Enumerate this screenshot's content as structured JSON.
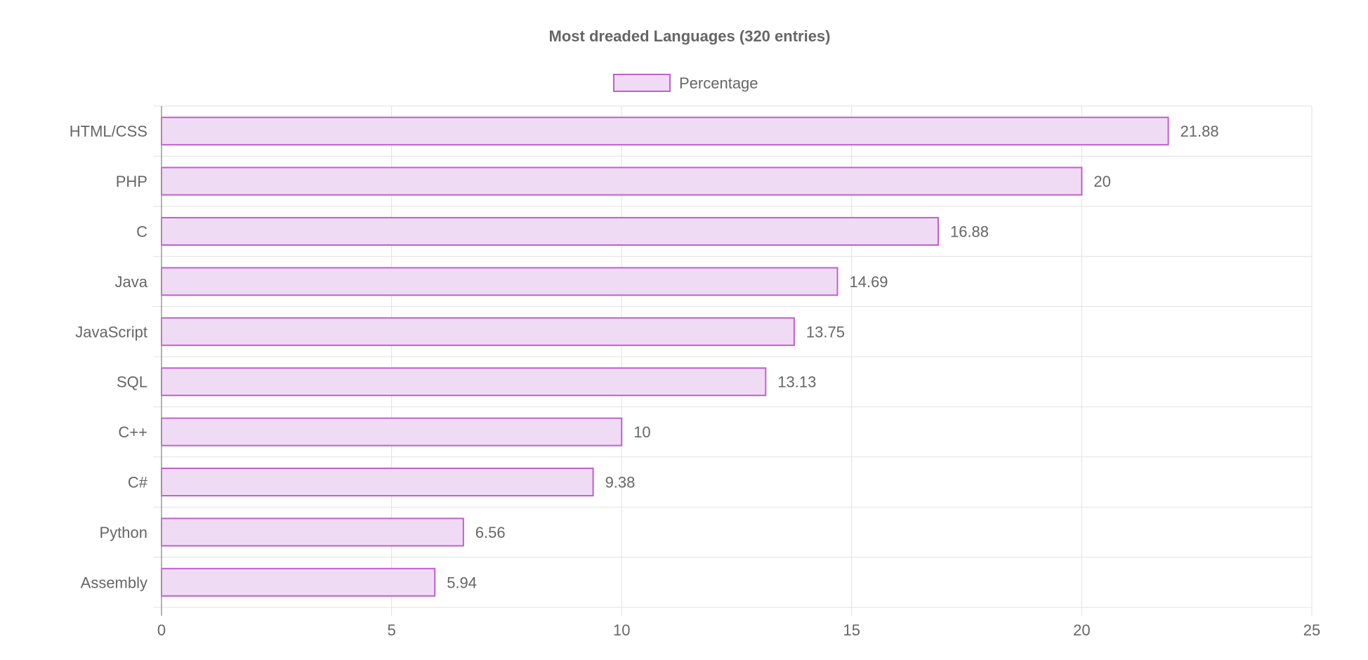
{
  "chart_data": {
    "type": "bar",
    "orientation": "horizontal",
    "title": "Most dreaded Languages (320 entries)",
    "categories": [
      "HTML/CSS",
      "PHP",
      "C",
      "Java",
      "JavaScript",
      "SQL",
      "C++",
      "C#",
      "Python",
      "Assembly"
    ],
    "series": [
      {
        "name": "Percentage",
        "values": [
          21.88,
          20,
          16.88,
          14.69,
          13.75,
          13.13,
          10,
          9.38,
          6.56,
          5.94
        ]
      }
    ],
    "data_labels": [
      "21.88",
      "20",
      "16.88",
      "14.69",
      "13.75",
      "13.13",
      "10",
      "9.38",
      "6.56",
      "5.94"
    ],
    "xlim": [
      0,
      25
    ],
    "x_ticks": [
      0,
      5,
      10,
      15,
      20,
      25
    ],
    "x_tick_labels": [
      "0",
      "5",
      "10",
      "15",
      "20",
      "25"
    ],
    "xlabel": "",
    "ylabel": "",
    "grid": true,
    "legend_position": "top-center"
  },
  "colors": {
    "bar_fill": "#f0dbf4",
    "bar_stroke": "#c05fd0",
    "grid": "#e1e1e1",
    "axis": "#9a9a9a",
    "text": "#666666"
  }
}
